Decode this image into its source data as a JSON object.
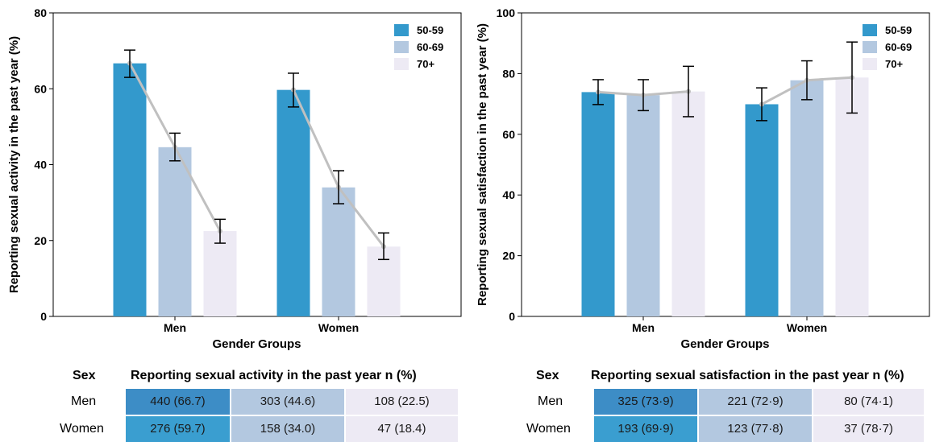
{
  "chart_data": [
    {
      "type": "bar",
      "categories": [
        "Men",
        "Women"
      ],
      "series": [
        {
          "name": "50-59",
          "values": [
            66.7,
            59.7
          ],
          "error": [
            [
              63.0,
              70.2
            ],
            [
              55.2,
              64.1
            ]
          ],
          "color": "#3399cc"
        },
        {
          "name": "60-69",
          "values": [
            44.6,
            34.0
          ],
          "error": [
            [
              41.0,
              48.3
            ],
            [
              29.7,
              38.4
            ]
          ],
          "color": "#b3c8e0"
        },
        {
          "name": "70+",
          "values": [
            22.5,
            18.4
          ],
          "error": [
            [
              19.3,
              25.6
            ],
            [
              15.0,
              22.0
            ]
          ],
          "color": "#edeaf4"
        }
      ],
      "xlabel": "Gender Groups",
      "ylabel": "Reporting sexual activity in the past year (%)",
      "ylim": [
        0,
        80
      ],
      "yticks": [
        "0",
        "20",
        "40",
        "60",
        "80"
      ],
      "trend_line": true,
      "trend_color": "#c0c0c0",
      "legend": "top-right",
      "grid": false
    },
    {
      "type": "bar",
      "categories": [
        "Men",
        "Women"
      ],
      "series": [
        {
          "name": "50-59",
          "values": [
            73.9,
            69.9
          ],
          "error": [
            [
              69.8,
              78.0
            ],
            [
              64.5,
              75.3
            ]
          ],
          "color": "#3399cc"
        },
        {
          "name": "60-69",
          "values": [
            72.9,
            77.8
          ],
          "error": [
            [
              67.8,
              78.0
            ],
            [
              71.4,
              84.2
            ]
          ],
          "color": "#b3c8e0"
        },
        {
          "name": "70+",
          "values": [
            74.1,
            78.7
          ],
          "error": [
            [
              65.8,
              82.4
            ],
            [
              67.0,
              90.4
            ]
          ],
          "color": "#edeaf4"
        }
      ],
      "xlabel": "Gender Groups",
      "ylabel": "Reporting sexual satisfaction in the past year (%)",
      "ylim": [
        0,
        100
      ],
      "yticks": [
        "0",
        "20",
        "40",
        "60",
        "80",
        "100"
      ],
      "trend_line": true,
      "trend_color": "#c0c0c0",
      "legend": "top-right",
      "grid": false
    }
  ],
  "tables": [
    {
      "sex_header": "Sex",
      "title": "Reporting sexual activity in the past year n (%)",
      "rows": [
        {
          "label": "Men",
          "cells": [
            "440 (66.7)",
            "303 (44.6)",
            "108 (22.5)"
          ]
        },
        {
          "label": "Women",
          "cells": [
            "276 (59.7)",
            "158 (34.0)",
            "47 (18.4)"
          ]
        }
      ],
      "row_colors": [
        [
          "#3d8dc6",
          "#b3c8e0",
          "#edeaf4"
        ],
        [
          "#3a9ed0",
          "#b3c8e0",
          "#edeaf4"
        ]
      ]
    },
    {
      "sex_header": "Sex",
      "title": "Reporting sexual satisfaction in the past year n (%)",
      "rows": [
        {
          "label": "Men",
          "cells": [
            "325 (73·9)",
            "221 (72·9)",
            "80 (74·1)"
          ]
        },
        {
          "label": "Women",
          "cells": [
            "193 (69·9)",
            "123 (77·8)",
            "37 (78·7)"
          ]
        }
      ],
      "row_colors": [
        [
          "#3d8dc6",
          "#b3c8e0",
          "#edeaf4"
        ],
        [
          "#3a9ed0",
          "#b3c8e0",
          "#edeaf4"
        ]
      ]
    }
  ]
}
